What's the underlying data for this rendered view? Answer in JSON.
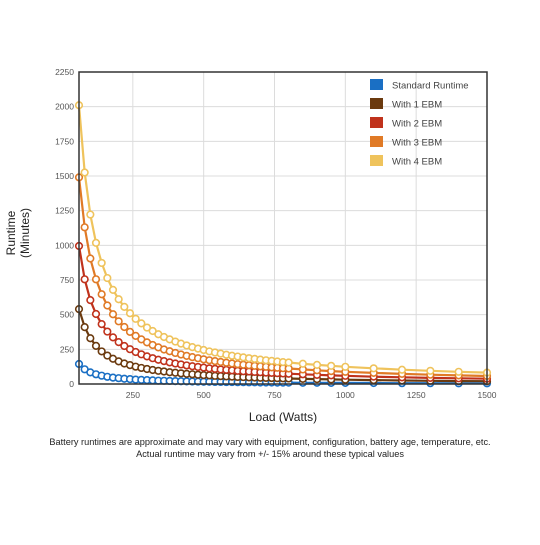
{
  "chart_data": {
    "type": "line",
    "xlabel": "Load (Watts)",
    "ylabel": [
      "Runtime",
      "(Minutes)"
    ],
    "xlim": [
      60,
      1500
    ],
    "ylim": [
      0,
      2250
    ],
    "xticks": [
      250,
      500,
      750,
      1000,
      1250,
      1500
    ],
    "yticks": [
      0,
      250,
      500,
      750,
      1000,
      1250,
      1500,
      1750,
      2000,
      2250
    ],
    "grid": true,
    "legend_position": "top-right",
    "x": [
      60,
      80,
      100,
      120,
      140,
      160,
      180,
      200,
      220,
      240,
      260,
      280,
      300,
      320,
      340,
      360,
      380,
      400,
      420,
      440,
      460,
      480,
      500,
      520,
      540,
      560,
      580,
      600,
      620,
      640,
      660,
      680,
      700,
      720,
      740,
      760,
      780,
      800,
      850,
      900,
      950,
      1000,
      1100,
      1200,
      1300,
      1400,
      1500
    ],
    "series": [
      {
        "name": "Standard Runtime",
        "color": "#1a6fc4",
        "values": [
          144,
          106,
          84,
          70,
          60,
          52,
          46,
          42,
          38,
          35,
          32,
          30,
          28,
          26,
          24,
          23,
          22,
          21,
          20,
          19,
          18,
          17,
          16,
          16,
          15,
          15,
          14,
          14,
          13,
          13,
          12,
          12,
          11,
          11,
          11,
          10,
          10,
          10,
          9,
          9,
          8,
          8,
          7,
          6,
          6,
          5,
          5
        ]
      },
      {
        "name": "With 1 EBM",
        "color": "#6b3a0f",
        "values": [
          540,
          410,
          330,
          275,
          235,
          205,
          182,
          163,
          148,
          136,
          125,
          116,
          108,
          101,
          95,
          90,
          85,
          81,
          77,
          73,
          70,
          67,
          64,
          62,
          59,
          57,
          55,
          53,
          51,
          50,
          48,
          47,
          45,
          44,
          43,
          42,
          41,
          40,
          37,
          35,
          33,
          31,
          28,
          25,
          23,
          21,
          20
        ]
      },
      {
        "name": "With 2 EBM",
        "color": "#c0321c",
        "values": [
          995,
          755,
          605,
          505,
          432,
          378,
          336,
          302,
          274,
          251,
          231,
          214,
          199,
          186,
          175,
          165,
          156,
          148,
          141,
          134,
          128,
          123,
          118,
          113,
          109,
          105,
          102,
          98,
          95,
          92,
          90,
          87,
          85,
          82,
          80,
          78,
          76,
          74,
          70,
          66,
          62,
          59,
          53,
          48,
          44,
          41,
          38
        ]
      },
      {
        "name": "With 3 EBM",
        "color": "#e07a26",
        "values": [
          1490,
          1130,
          905,
          755,
          647,
          566,
          503,
          452,
          411,
          376,
          347,
          322,
          300,
          281,
          264,
          249,
          236,
          224,
          213,
          203,
          194,
          186,
          178,
          171,
          165,
          159,
          153,
          148,
          143,
          139,
          135,
          131,
          127,
          124,
          120,
          117,
          114,
          112,
          105,
          99,
          93,
          88,
          80,
          73,
          67,
          62,
          58
        ]
      },
      {
        "name": "With 4 EBM",
        "color": "#efc35c",
        "values": [
          2010,
          1525,
          1222,
          1018,
          873,
          764,
          679,
          611,
          556,
          510,
          470,
          437,
          407,
          382,
          359,
          339,
          322,
          306,
          291,
          278,
          266,
          255,
          245,
          235,
          227,
          219,
          211,
          204,
          198,
          192,
          186,
          181,
          176,
          171,
          167,
          162,
          158,
          155,
          146,
          138,
          131,
          124,
          113,
          103,
          95,
          88,
          82
        ]
      }
    ]
  },
  "footnote": {
    "line1": "Battery runtimes are approximate and may vary with equipment, configuration, battery age, temperature, etc.",
    "line2": "Actual runtime may vary from +/- 15% around these typical values"
  }
}
